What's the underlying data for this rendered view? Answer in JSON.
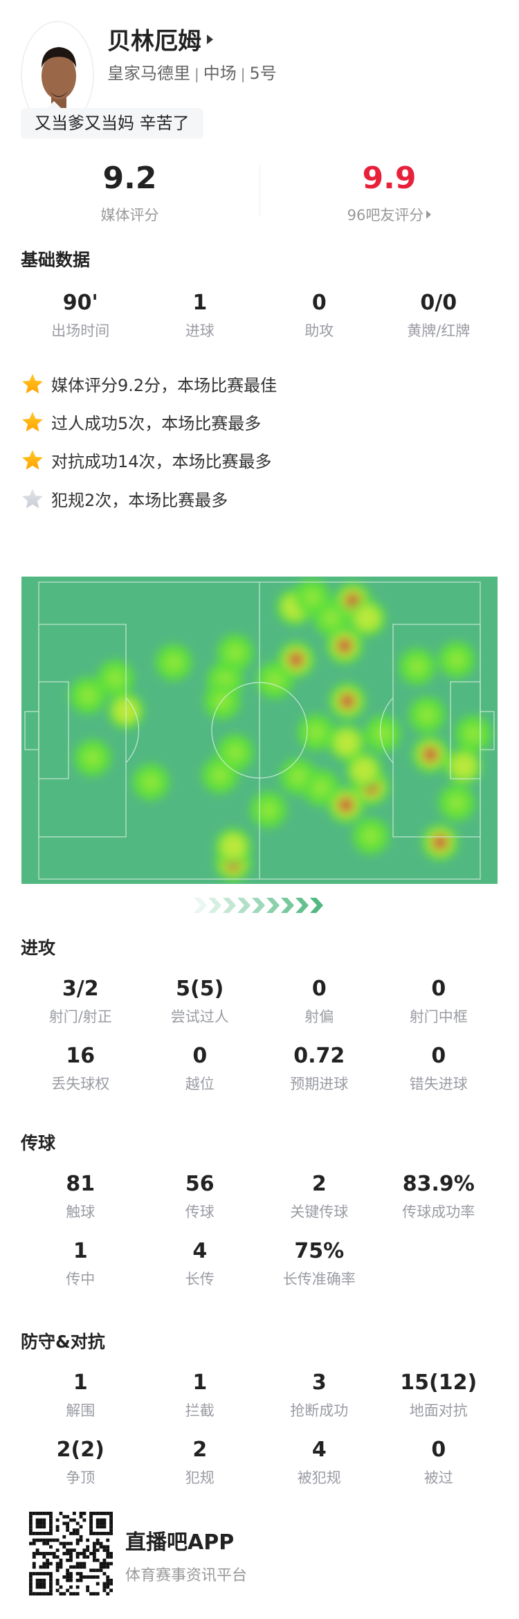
{
  "player": {
    "name": "贝林厄姆",
    "team": "皇家马德里",
    "position": "中场",
    "number": "5号",
    "comment": "又当爹又当妈 辛苦了"
  },
  "ratings": {
    "media": {
      "value": "9.2",
      "label": "媒体评分"
    },
    "fans": {
      "value": "9.9",
      "label": "96吧友评分",
      "color": "#e8213b"
    }
  },
  "basic": {
    "title": "基础数据",
    "stats": [
      {
        "value": "90'",
        "label": "出场时间"
      },
      {
        "value": "1",
        "label": "进球"
      },
      {
        "value": "0",
        "label": "助攻"
      },
      {
        "value": "0/0",
        "label": "黄牌/红牌"
      }
    ]
  },
  "highlights": [
    {
      "text": "媒体评分9.2分，本场比赛最佳",
      "star": "gold"
    },
    {
      "text": "过人成功5次，本场比赛最多",
      "star": "gold"
    },
    {
      "text": "对抗成功14次，本场比赛最多",
      "star": "gold"
    },
    {
      "text": "犯规2次，本场比赛最多",
      "star": "gray"
    }
  ],
  "heatmap": {
    "pitch_color": "#52b882",
    "attack_direction": "right"
  },
  "attack": {
    "title": "进攻",
    "rows": [
      [
        {
          "value": "3/2",
          "label": "射门/射正"
        },
        {
          "value": "5(5)",
          "label": "尝试过人"
        },
        {
          "value": "0",
          "label": "射偏"
        },
        {
          "value": "0",
          "label": "射门中框"
        }
      ],
      [
        {
          "value": "16",
          "label": "丢失球权"
        },
        {
          "value": "0",
          "label": "越位"
        },
        {
          "value": "0.72",
          "label": "预期进球"
        },
        {
          "value": "0",
          "label": "错失进球"
        }
      ]
    ]
  },
  "passing": {
    "title": "传球",
    "rows": [
      [
        {
          "value": "81",
          "label": "触球"
        },
        {
          "value": "56",
          "label": "传球"
        },
        {
          "value": "2",
          "label": "关键传球"
        },
        {
          "value": "83.9%",
          "label": "传球成功率"
        }
      ],
      [
        {
          "value": "1",
          "label": "传中"
        },
        {
          "value": "4",
          "label": "长传"
        },
        {
          "value": "75%",
          "label": "长传准确率"
        }
      ]
    ]
  },
  "defense": {
    "title": "防守&对抗",
    "rows": [
      [
        {
          "value": "1",
          "label": "解围"
        },
        {
          "value": "1",
          "label": "拦截"
        },
        {
          "value": "3",
          "label": "抢断成功"
        },
        {
          "value": "15(12)",
          "label": "地面对抗"
        }
      ],
      [
        {
          "value": "2(2)",
          "label": "争顶"
        },
        {
          "value": "2",
          "label": "犯规"
        },
        {
          "value": "4",
          "label": "被犯规"
        },
        {
          "value": "0",
          "label": "被过"
        }
      ]
    ]
  },
  "footer": {
    "app": "直播吧APP",
    "slogan": "体育赛事资讯平台"
  }
}
